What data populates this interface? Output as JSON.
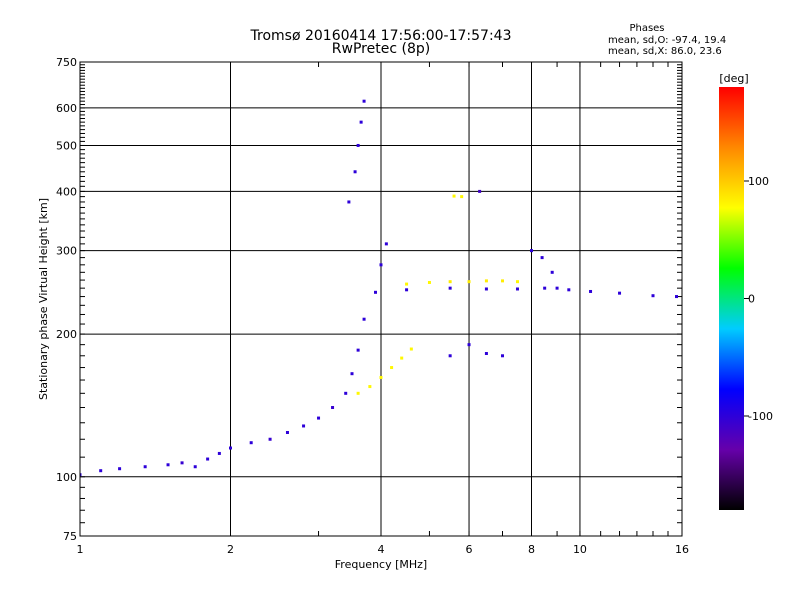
{
  "chart_data": {
    "type": "scatter",
    "title": "Tromsø 20160414 17:56:00-17:57:43",
    "subtitle": "RwPretec (8p)",
    "xlabel": "Frequency [MHz]",
    "ylabel": "Stationary phase Virtual Height [km]",
    "x_scale": "log",
    "y_scale": "log",
    "xlim": [
      1,
      16
    ],
    "ylim": [
      75,
      750
    ],
    "x_ticks": [
      "1",
      "2",
      "4",
      "6",
      "8",
      "10",
      "16"
    ],
    "y_ticks": [
      "750",
      "600",
      "500",
      "400",
      "300",
      "200",
      "100",
      "75"
    ],
    "grid": true,
    "stats": {
      "header": "Phases",
      "line_o": "mean, sd,O: -97.4, 19.4",
      "line_x": "mean, sd,X: 86.0, 23.6"
    },
    "colorbar": {
      "label": "[deg]",
      "range": [
        -180,
        180
      ],
      "ticks": [
        "100",
        "0",
        "-100"
      ],
      "colors": [
        "#000000",
        "#6600aa",
        "#0000ff",
        "#00ccff",
        "#00ff00",
        "#ffff00",
        "#ff8800",
        "#ff0000"
      ]
    },
    "series": [
      {
        "values": [
          [
            1.0,
            101,
            -100
          ],
          [
            1.1,
            103,
            -100
          ],
          [
            1.2,
            104,
            -100
          ],
          [
            1.35,
            105,
            -100
          ],
          [
            1.5,
            106,
            -100
          ],
          [
            1.6,
            107,
            -105
          ],
          [
            1.7,
            105,
            -100
          ],
          [
            1.8,
            109,
            -100
          ],
          [
            1.9,
            112,
            -100
          ],
          [
            2.0,
            115,
            -100
          ],
          [
            2.2,
            118,
            -100
          ],
          [
            2.4,
            120,
            -105
          ],
          [
            2.6,
            124,
            -100
          ],
          [
            2.8,
            128,
            -100
          ],
          [
            3.0,
            133,
            -100
          ],
          [
            3.2,
            140,
            -105
          ],
          [
            3.4,
            150,
            -100
          ],
          [
            3.5,
            165,
            -100
          ],
          [
            3.6,
            185,
            -100
          ],
          [
            3.7,
            215,
            -100
          ],
          [
            3.9,
            245,
            -100
          ],
          [
            4.0,
            280,
            -100
          ],
          [
            4.1,
            310,
            -100
          ]
        ]
      },
      {
        "values": [
          [
            3.45,
            380,
            -100
          ],
          [
            3.55,
            440,
            -100
          ],
          [
            3.6,
            500,
            -100
          ],
          [
            3.65,
            560,
            -100
          ],
          [
            3.7,
            620,
            -100
          ]
        ]
      },
      {
        "values": [
          [
            3.6,
            150,
            80
          ],
          [
            3.8,
            155,
            80
          ],
          [
            4.0,
            162,
            80
          ],
          [
            4.2,
            170,
            80
          ],
          [
            4.4,
            178,
            80
          ],
          [
            4.6,
            186,
            80
          ]
        ]
      },
      {
        "values": [
          [
            4.5,
            255,
            80
          ],
          [
            5.0,
            257,
            80
          ],
          [
            5.5,
            258,
            85
          ],
          [
            6.0,
            258,
            85
          ],
          [
            6.5,
            259,
            85
          ],
          [
            7.0,
            259,
            85
          ],
          [
            7.5,
            258,
            80
          ]
        ]
      },
      {
        "values": [
          [
            4.5,
            248,
            -100
          ],
          [
            5.5,
            250,
            -100
          ],
          [
            6.5,
            249,
            -100
          ],
          [
            7.5,
            249,
            -100
          ],
          [
            8.5,
            250,
            -100
          ],
          [
            9.5,
            248,
            -100
          ],
          [
            10.5,
            246,
            -100
          ],
          [
            12.0,
            244,
            -100
          ],
          [
            14.0,
            241,
            -100
          ],
          [
            15.6,
            240,
            -100
          ]
        ]
      },
      {
        "values": [
          [
            8.0,
            300,
            -100
          ],
          [
            8.4,
            290,
            -100
          ],
          [
            8.8,
            270,
            -100
          ],
          [
            9.0,
            250,
            -100
          ]
        ]
      },
      {
        "values": [
          [
            5.5,
            180,
            -100
          ],
          [
            6.0,
            190,
            -100
          ],
          [
            6.5,
            182,
            -100
          ],
          [
            7.0,
            180,
            -100
          ]
        ]
      },
      {
        "values": [
          [
            5.6,
            391,
            80
          ],
          [
            5.8,
            390,
            80
          ]
        ]
      },
      {
        "values": [
          [
            6.3,
            400,
            -110
          ]
        ]
      }
    ]
  }
}
